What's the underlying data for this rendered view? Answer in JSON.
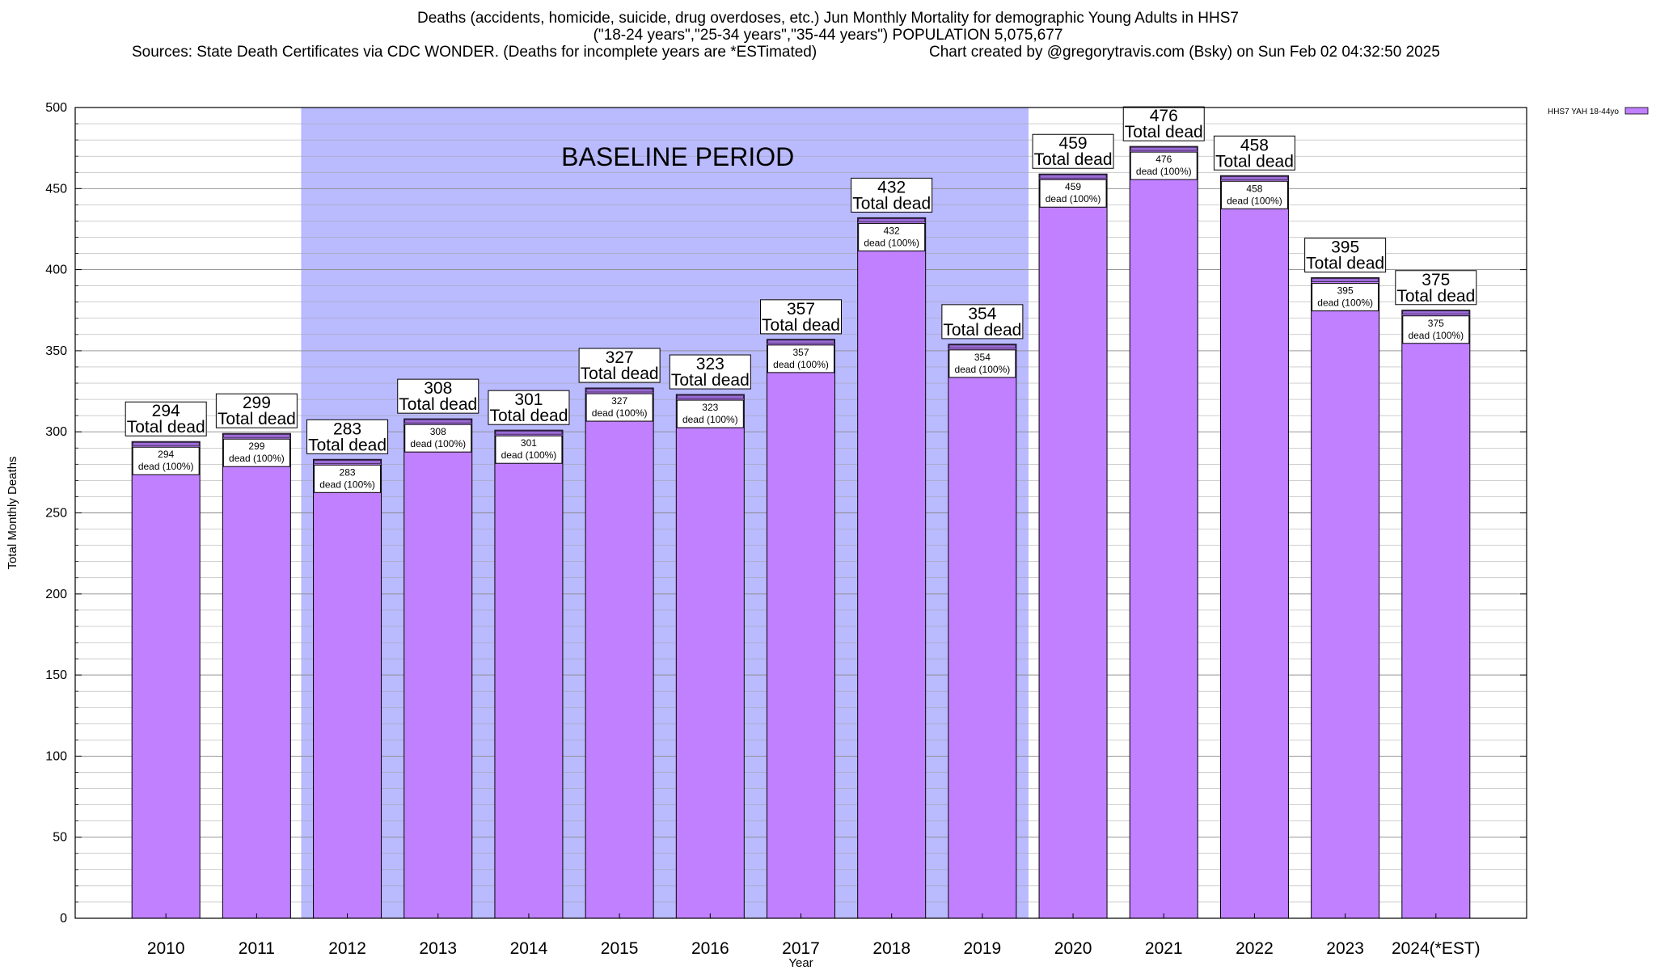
{
  "title": {
    "line1": "Deaths (accidents, homicide, suicide, drug overdoses, etc.) Jun Monthly Mortality for demographic Young Adults in HHS7",
    "line2": "(\"18-24 years\",\"25-34 years\",\"35-44 years\") POPULATION 5,075,677",
    "sources": "Sources: State Death Certificates via CDC WONDER. (Deaths for incomplete years are *ESTimated)",
    "credit": "Chart created by @gregorytravis.com (Bsky) on Sun Feb 02 04:32:50 2025"
  },
  "colors": {
    "bar_fill": "#c080ff",
    "bar_stroke": "#000000",
    "top_strip": "#9b6bd6",
    "baseline_region": "#babaff",
    "grid": "#a0a0a0"
  },
  "chart_data": {
    "type": "bar",
    "categories": [
      "2010",
      "2011",
      "2012",
      "2013",
      "2014",
      "2015",
      "2016",
      "2017",
      "2018",
      "2019",
      "2020",
      "2021",
      "2022",
      "2023",
      "2024(*EST)"
    ],
    "series": [
      {
        "name": "HHS7 YAH 18-44yo",
        "values": [
          294,
          299,
          283,
          308,
          301,
          327,
          323,
          357,
          432,
          354,
          459,
          476,
          458,
          395,
          375
        ]
      }
    ],
    "top_label_suffix": "Total dead",
    "inner_label_suffix": "dead (100%)",
    "xlabel": "Year",
    "ylabel": "Total Monthly Deaths",
    "ylim": [
      0,
      500
    ],
    "yticks": [
      0,
      50,
      100,
      150,
      200,
      250,
      300,
      350,
      400,
      450,
      500
    ],
    "grid": true,
    "legend_position": "top-right",
    "annotation": {
      "text": "BASELINE PERIOD",
      "from_category": "2012",
      "to_category": "2019"
    }
  }
}
